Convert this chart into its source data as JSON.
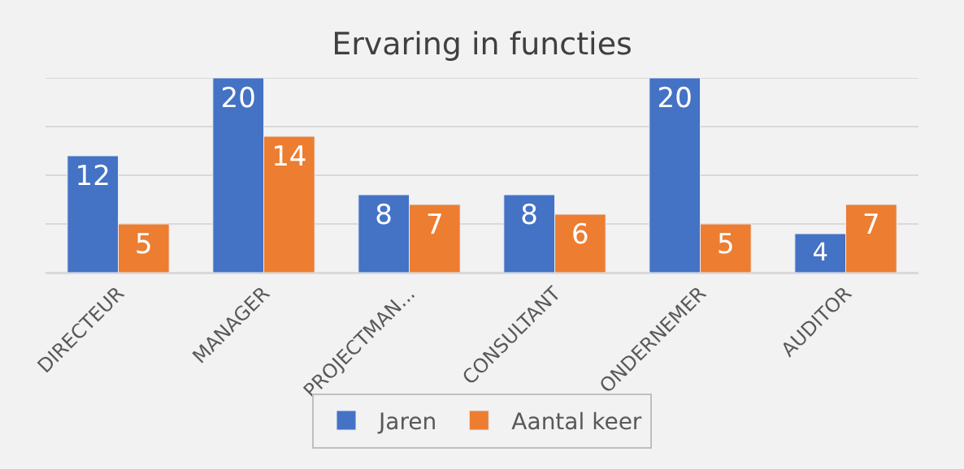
{
  "chart_data": {
    "type": "bar",
    "title": "Ervaring in functies",
    "categories": [
      "DIRECTEUR",
      "MANAGER",
      "PROJECTMAN...",
      "CONSULTANT",
      "ONDERNEMER",
      "AUDITOR"
    ],
    "series": [
      {
        "name": "Jaren",
        "color": "#4472c4",
        "values": [
          12,
          20,
          8,
          8,
          20,
          4
        ]
      },
      {
        "name": "Aantal keer",
        "color": "#ed7d31",
        "values": [
          5,
          14,
          7,
          6,
          5,
          7
        ]
      }
    ],
    "ylim": [
      0,
      20
    ],
    "yticks": [
      {
        "value": 0,
        "label": null
      },
      {
        "value": 5,
        "label": null
      },
      {
        "value": 10,
        "label": null
      },
      {
        "value": 15,
        "label": null
      },
      {
        "value": 20,
        "label": null
      }
    ],
    "grid": "y",
    "legend": "bottom",
    "tick_labels": "x",
    "data_labels": true
  }
}
